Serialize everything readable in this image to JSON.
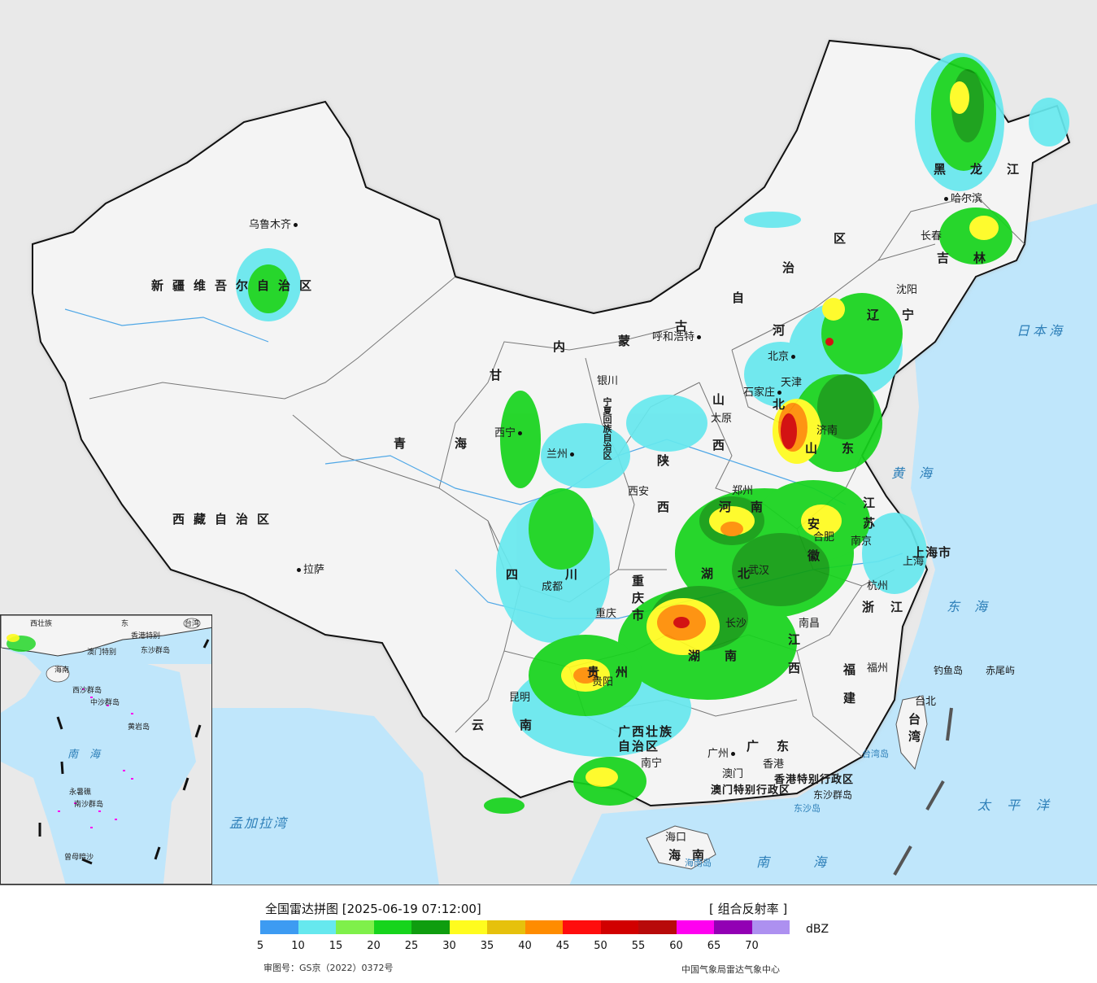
{
  "legend": {
    "title": "全国雷达拼图 [2025-06-19 07:12:00]",
    "product": "[ 组合反射率 ]",
    "unit": "dBZ",
    "scale": [
      {
        "value": "5",
        "color": "#3d9bf2"
      },
      {
        "value": "10",
        "color": "#66e8ee"
      },
      {
        "value": "15",
        "color": "#7ff04a"
      },
      {
        "value": "20",
        "color": "#16d41c"
      },
      {
        "value": "25",
        "color": "#0f9d0f"
      },
      {
        "value": "30",
        "color": "#fffc1e"
      },
      {
        "value": "35",
        "color": "#e6c10c"
      },
      {
        "value": "40",
        "color": "#ff8c00"
      },
      {
        "value": "45",
        "color": "#ff0d0d"
      },
      {
        "value": "50",
        "color": "#d10000"
      },
      {
        "value": "55",
        "color": "#b80a0a"
      },
      {
        "value": "60",
        "color": "#ff00f0"
      },
      {
        "value": "65",
        "color": "#9200b4"
      },
      {
        "value": "70",
        "color": "#ad90f0"
      }
    ],
    "review_number": "审图号：GS京（2022）0372号",
    "source": "中国气象局雷达气象中心"
  },
  "map": {
    "land_color": "#f4f4f4",
    "foreign_color": "#e9e9e9",
    "sea_color": "#bfe6fb",
    "provinces": {
      "xinjiang": "新疆维吾尔自治区",
      "xizang": "西藏自治区",
      "qinghai": "青海",
      "gansu": "甘",
      "nei_mongol_1": "内",
      "nei_mongol_2": "蒙",
      "nei_mongol_3": "古",
      "nei_mongol_4": "自",
      "nei_mongol_5": "治",
      "nei_mongol_6": "区",
      "heilongjiang": "黑龙江",
      "jilin": "吉林",
      "liaoning": "辽宁",
      "hebei_1": "河",
      "hebei_2": "北",
      "shanxi_1": "山",
      "shanxi_2": "西",
      "shaanxi_1": "陕",
      "shaanxi_2": "西",
      "shandong": "山东",
      "henan": "河南",
      "jiangsu": "江苏",
      "anhui": "安徽",
      "hubei": "湖北",
      "hunan": "湖南",
      "jiangxi": "江西",
      "zhejiang": "浙江",
      "fujian": "福建",
      "sichuan": "四川",
      "chongqing": "重庆市",
      "guizhou": "贵州",
      "yunnan": "云南",
      "guangxi": "广西壮族自治区",
      "guangdong": "广东",
      "hainan": "海南",
      "taiwan": "台湾",
      "ningxia": "宁夏回族自治区",
      "shanghai": "上海市",
      "hongkong": "香港特别行政区",
      "macau": "澳门特别行政区"
    },
    "cities": {
      "urumqi": "乌鲁木齐",
      "lhasa": "拉萨",
      "xining": "西宁",
      "lanzhou": "兰州",
      "yinchuan": "银川",
      "hohhot": "呼和浩特",
      "beijing": "北京",
      "tianjin": "天津",
      "shijiazhuang": "石家庄",
      "taiyuan": "太原",
      "jinan": "济南",
      "zhengzhou": "郑州",
      "xian": "西安",
      "harbin": "哈尔滨",
      "changchun": "长春",
      "shenyang": "沈阳",
      "nanjing": "南京",
      "hefei": "合肥",
      "wuhan": "武汉",
      "hangzhou": "杭州",
      "shanghai": "上海",
      "nanchang": "南昌",
      "changsha": "长沙",
      "fuzhou": "福州",
      "taipei": "台北",
      "chengdu": "成都",
      "chongqing": "重庆",
      "guiyang": "贵阳",
      "kunming": "昆明",
      "nanning": "南宁",
      "guangzhou": "广州",
      "hk": "香港",
      "macau": "澳门",
      "haikou": "海口"
    },
    "seas": {
      "japan_sea": "日本海",
      "yellow_sea": "黄海",
      "east_sea": "东海",
      "pacific": "太平洋",
      "south_sea": "南海",
      "bengal": "孟加拉湾"
    },
    "islands": {
      "diaoyu": "钓鱼岛",
      "chiwei": "赤尾屿",
      "taiwan_island": "台湾岛",
      "hainan_island": "海南岛",
      "dongsha_islands": "东沙群岛",
      "dongsha_island": "东沙岛"
    }
  },
  "inset": {
    "labels": {
      "guangxi": "西壮族",
      "guangdong": "东",
      "taiwan": "台湾",
      "hainan": "海南",
      "macau": "澳门特别",
      "hk": "香港特别",
      "dongsha": "东沙群岛",
      "xisha": "西沙群岛",
      "zhongsha": "中沙群岛",
      "huangyan": "黄岩岛",
      "nansha": "南沙群岛",
      "zengmu": "曾母暗沙",
      "yongshu": "永暑礁",
      "sea": "南海"
    }
  }
}
